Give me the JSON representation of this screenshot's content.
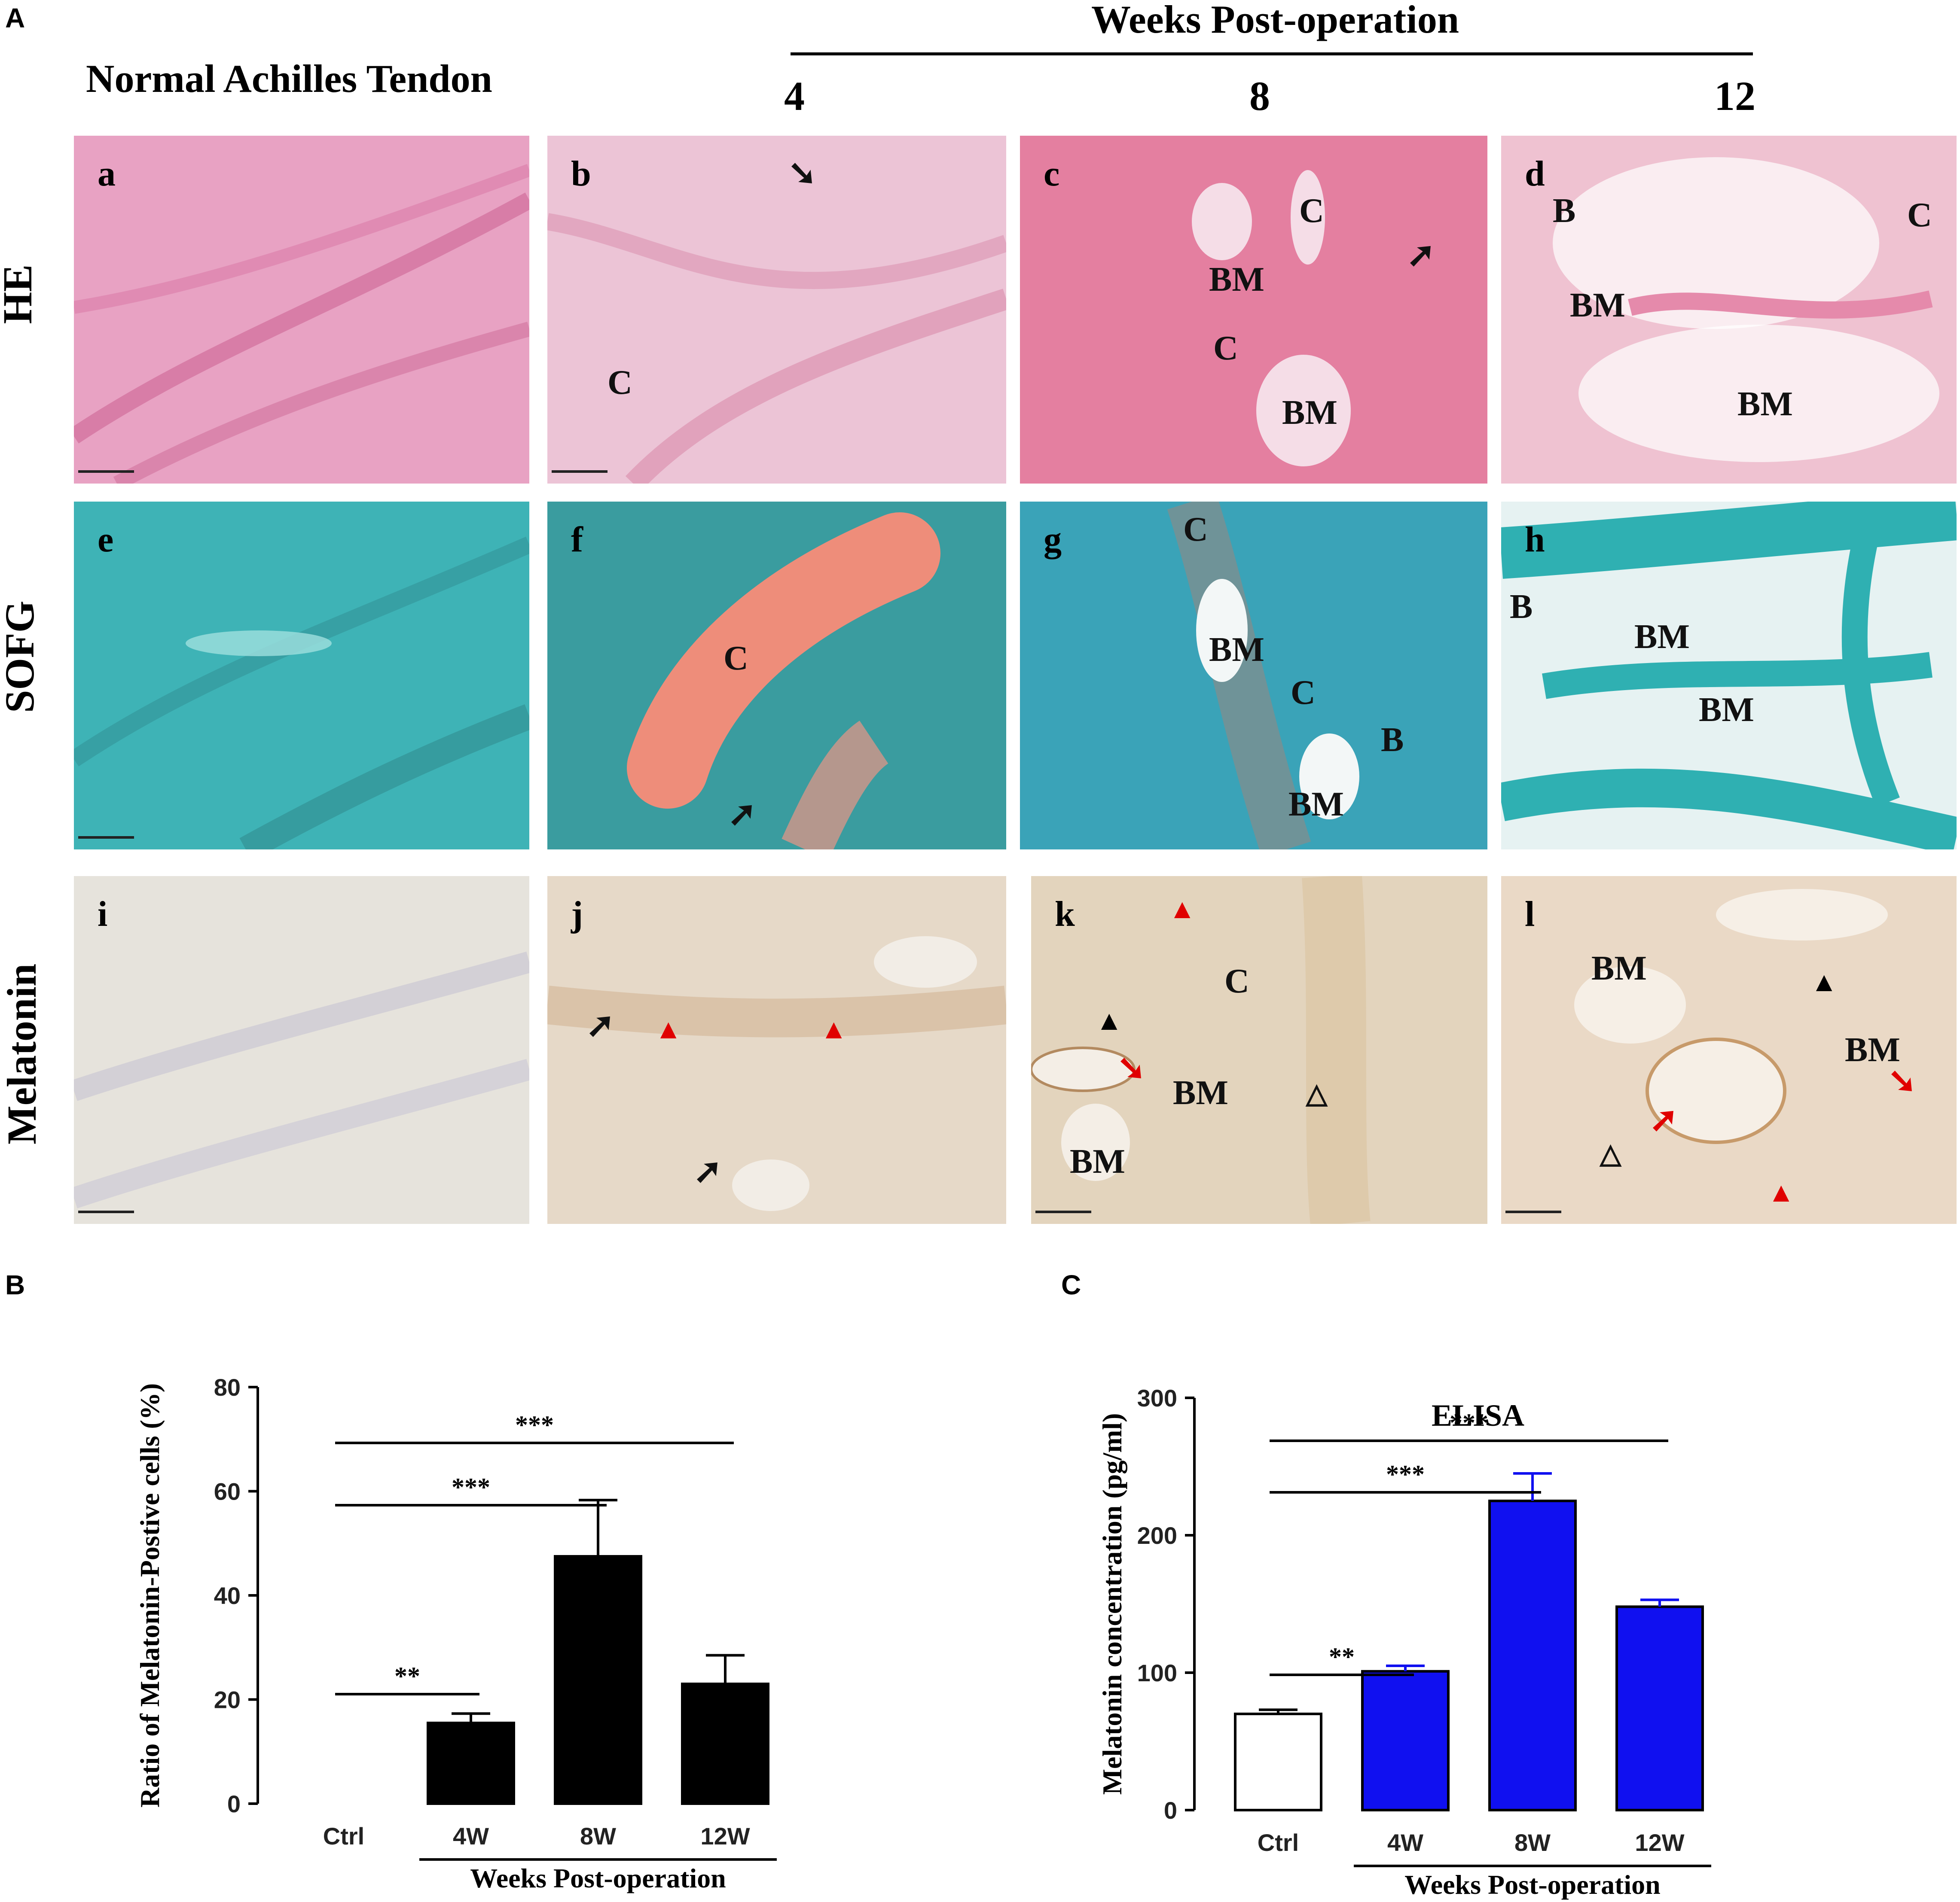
{
  "panel_A": {
    "letter": "A",
    "weeks_header": "Weeks Post-operation",
    "normal_header": "Normal Achilles Tendon",
    "week_cols": [
      "4",
      "8",
      "12"
    ],
    "row_labels": [
      "HE",
      "SOFG",
      "Melatonin"
    ],
    "panels": [
      {
        "id": "a",
        "annotations": []
      },
      {
        "id": "b",
        "annotations": [
          "C"
        ]
      },
      {
        "id": "c",
        "annotations": [
          "C",
          "BM",
          "C",
          "BM"
        ]
      },
      {
        "id": "d",
        "annotations": [
          "B",
          "C",
          "BM",
          "BM"
        ]
      },
      {
        "id": "e",
        "annotations": []
      },
      {
        "id": "f",
        "annotations": [
          "C"
        ]
      },
      {
        "id": "g",
        "annotations": [
          "C",
          "BM",
          "C",
          "B",
          "BM"
        ]
      },
      {
        "id": "h",
        "annotations": [
          "B",
          "BM",
          "BM"
        ]
      },
      {
        "id": "i",
        "annotations": []
      },
      {
        "id": "j",
        "annotations": []
      },
      {
        "id": "k",
        "annotations": [
          "C",
          "BM",
          "BM"
        ]
      },
      {
        "id": "l",
        "annotations": [
          "BM",
          "BM"
        ]
      }
    ]
  },
  "panel_B": {
    "letter": "B",
    "chart_data": {
      "type": "bar",
      "categories": [
        "Ctrl",
        "4W",
        "8W",
        "12W"
      ],
      "values": [
        0,
        15.5,
        47.5,
        23
      ],
      "errors": [
        0,
        1.8,
        10.8,
        5.5
      ],
      "ylabel": "Ratio of Melatonin-Postive cells (%)",
      "xlabel": "Weeks Post-operation",
      "ylim": [
        0,
        80
      ],
      "yticks": [
        0,
        20,
        40,
        60,
        80
      ],
      "bar_color": "#000000",
      "significance": [
        {
          "from": "Ctrl",
          "to": "4W",
          "label": "**"
        },
        {
          "from": "Ctrl",
          "to": "8W",
          "label": "***"
        },
        {
          "from": "Ctrl",
          "to": "12W",
          "label": "***"
        }
      ]
    }
  },
  "panel_C": {
    "letter": "C",
    "chart_data": {
      "type": "bar",
      "title": "ELISA",
      "categories": [
        "Ctrl",
        "4W",
        "8W",
        "12W"
      ],
      "values": [
        70,
        101,
        225,
        148
      ],
      "errors": [
        3,
        4,
        20,
        5
      ],
      "ylabel": "Melatonin concentration (pg/ml)",
      "xlabel": "Weeks Post-operation",
      "ylim": [
        0,
        300
      ],
      "yticks": [
        0,
        100,
        200,
        300
      ],
      "bar_colors": [
        "#ffffff",
        "#1010f0",
        "#1010f0",
        "#1010f0"
      ],
      "significance": [
        {
          "from": "Ctrl",
          "to": "4W",
          "label": "**"
        },
        {
          "from": "Ctrl",
          "to": "8W",
          "label": "***"
        },
        {
          "from": "Ctrl",
          "to": "12W",
          "label": "***"
        }
      ]
    }
  }
}
